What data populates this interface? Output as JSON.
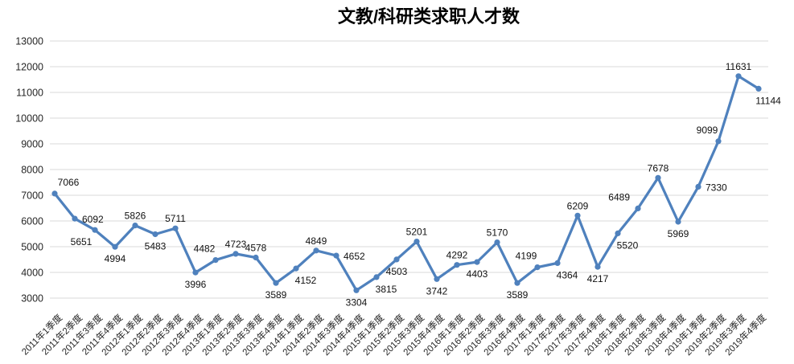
{
  "page": {
    "background": "#ffffff"
  },
  "chart_data": {
    "type": "line",
    "title": "文教/科研类求职人才数",
    "legend_position": "none",
    "grid": true,
    "ylim": [
      3000,
      13000
    ],
    "y_ticks": [
      13000,
      12000,
      11000,
      10000,
      9000,
      8000,
      7000,
      6000,
      5000,
      4000,
      3000
    ],
    "x_label_rotation_deg": -45,
    "categories": [
      "2011年1季度",
      "2011年2季度",
      "2011年3季度",
      "2011年4季度",
      "2012年1季度",
      "2012年2季度",
      "2012年3季度",
      "2012年4季度",
      "2013年1季度",
      "2013年2季度",
      "2013年3季度",
      "2013年4季度",
      "2014年1季度",
      "2014年2季度",
      "2014年3季度",
      "2014年4季度",
      "2015年1季度",
      "2015年2季度",
      "2015年3季度",
      "2015年4季度",
      "2016年1季度",
      "2016年2季度",
      "2016年3季度",
      "2016年4季度",
      "2017年1季度",
      "2017年2季度",
      "2017年3季度",
      "2017年4季度",
      "2018年1季度",
      "2018年2季度",
      "2018年3季度",
      "2018年4季度",
      "2019年1季度",
      "2019年2季度",
      "2019年3季度",
      "2019年4季度"
    ],
    "values": [
      7066,
      6092,
      5651,
      4994,
      5826,
      5483,
      5711,
      3996,
      4482,
      4723,
      4578,
      3589,
      4152,
      4849,
      4652,
      3304,
      3815,
      4503,
      5201,
      3742,
      4292,
      4403,
      5170,
      3589,
      4199,
      4364,
      6209,
      4217,
      5520,
      6489,
      7678,
      5969,
      7330,
      9099,
      11631,
      11144
    ],
    "data_labels_shown": true,
    "label_positions": [
      "above-right",
      "right",
      "below-left",
      "below",
      "above",
      "below",
      "above",
      "below",
      "above-left",
      "above",
      "above",
      "below",
      "below-right",
      "above",
      "right",
      "below",
      "below-right",
      "below",
      "above",
      "below",
      "above",
      "below",
      "above",
      "below",
      "above-left",
      "below-right",
      "above",
      "below",
      "below-right",
      "left-above",
      "above",
      "below",
      "right",
      "above-left",
      "above",
      "below-right"
    ],
    "colors": {
      "series": "#4F81BD",
      "grid": "#D9D9D9",
      "axis_text": "#262626",
      "data_label_text": "#111111"
    }
  }
}
